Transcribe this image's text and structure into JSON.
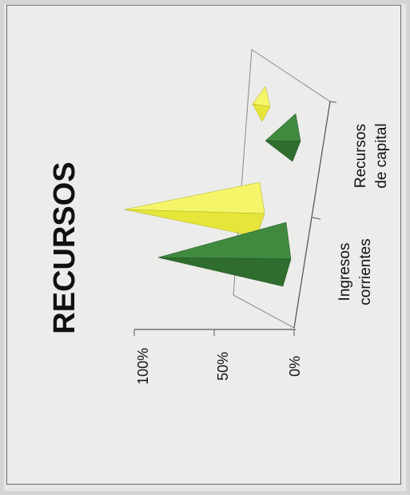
{
  "chart_data": {
    "type": "bar",
    "title": "RECURSOS",
    "orientation": "rotated-90-ccw",
    "style": "3d-pyramid",
    "categories": [
      "Ingresos corrientes",
      "Recursos de capital"
    ],
    "series": [
      {
        "color": "#2f6d2f",
        "values": [
          90,
          23
        ]
      },
      {
        "color": "#e6e63a",
        "values": [
          100,
          20
        ]
      }
    ],
    "y_ticks": [
      "100%",
      "50%",
      "0%"
    ],
    "ylim": [
      0,
      100
    ],
    "category_lines": [
      [
        "Ingresos",
        "corrientes"
      ],
      [
        "Recursos",
        "de capital"
      ]
    ]
  }
}
